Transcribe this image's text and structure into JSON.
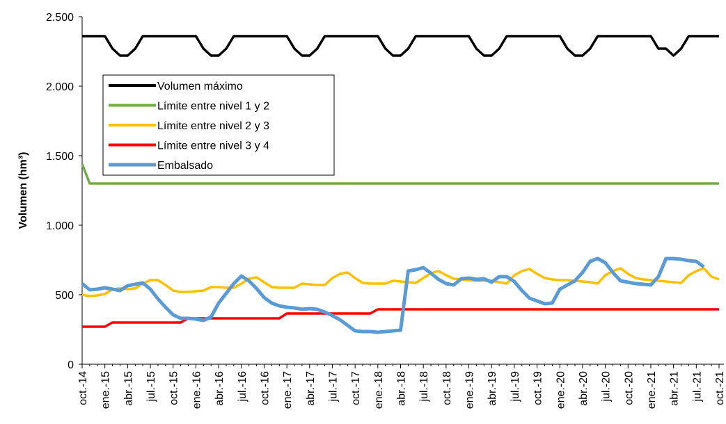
{
  "chart_data": {
    "type": "line",
    "y_label": "Volumen (hm³)",
    "categories": [
      "oct.-14",
      null,
      null,
      "ene.-15",
      null,
      null,
      "abr.-15",
      null,
      null,
      "jul.-15",
      null,
      null,
      "oct.-15",
      null,
      null,
      "ene.-16",
      null,
      null,
      "abr.-16",
      null,
      null,
      "jul.-16",
      null,
      null,
      "oct.-16",
      null,
      null,
      "ene.-17",
      null,
      null,
      "abr.-17",
      null,
      null,
      "jul.-17",
      null,
      null,
      "oct.-17",
      null,
      null,
      "ene.-18",
      null,
      null,
      "abr.-18",
      null,
      null,
      "jul.-18",
      null,
      null,
      "oct.-18",
      null,
      null,
      "ene.-19",
      null,
      null,
      "abr.-19",
      null,
      null,
      "jul.-19",
      null,
      null,
      "oct.-19",
      null,
      null,
      "ene.-20",
      null,
      null,
      "abr.-20",
      null,
      null,
      "jul.-20",
      null,
      null,
      "oct.-20",
      null,
      null,
      "ene.-21",
      null,
      null,
      "abr.-21",
      null,
      null,
      "jul.-21",
      null,
      null,
      "oct.-21"
    ],
    "ylim": [
      0,
      2500
    ],
    "yticks": [
      0,
      500,
      {
        "value": 1000,
        "label": "1.000"
      },
      {
        "value": 1500,
        "label": "1.500"
      },
      {
        "value": 2000,
        "label": "2.000"
      },
      {
        "value": 2500,
        "label": "2.500"
      }
    ],
    "legend": "upper left",
    "series": [
      {
        "name": "Volumen máximo",
        "color": "#000000",
        "values": [
          2360,
          2360,
          2360,
          2360,
          2270,
          2220,
          2220,
          2270,
          2360,
          2360,
          2360,
          2360,
          2360,
          2360,
          2360,
          2360,
          2270,
          2220,
          2220,
          2270,
          2360,
          2360,
          2360,
          2360,
          2360,
          2360,
          2360,
          2360,
          2270,
          2220,
          2220,
          2270,
          2360,
          2360,
          2360,
          2360,
          2360,
          2360,
          2360,
          2360,
          2270,
          2220,
          2220,
          2270,
          2360,
          2360,
          2360,
          2360,
          2360,
          2360,
          2360,
          2360,
          2270,
          2220,
          2220,
          2270,
          2360,
          2360,
          2360,
          2360,
          2360,
          2360,
          2360,
          2360,
          2270,
          2220,
          2220,
          2270,
          2360,
          2360,
          2360,
          2360,
          2360,
          2360,
          2360,
          2360,
          2270,
          2270,
          2220,
          2270,
          2360,
          2360,
          2360,
          2360,
          2360
        ]
      },
      {
        "name": "Límite entre nivel 1 y 2",
        "color": "#70ad47",
        "values": [
          1440,
          1300,
          1300,
          1300,
          1300,
          1300,
          1300,
          1300,
          1300,
          1300,
          1300,
          1300,
          1300,
          1300,
          1300,
          1300,
          1300,
          1300,
          1300,
          1300,
          1300,
          1300,
          1300,
          1300,
          1300,
          1300,
          1300,
          1300,
          1300,
          1300,
          1300,
          1300,
          1300,
          1300,
          1300,
          1300,
          1300,
          1300,
          1300,
          1300,
          1300,
          1300,
          1300,
          1300,
          1300,
          1300,
          1300,
          1300,
          1300,
          1300,
          1300,
          1300,
          1300,
          1300,
          1300,
          1300,
          1300,
          1300,
          1300,
          1300,
          1300,
          1300,
          1300,
          1300,
          1300,
          1300,
          1300,
          1300,
          1300,
          1300,
          1300,
          1300,
          1300,
          1300,
          1300,
          1300,
          1300,
          1300,
          1300,
          1300,
          1300,
          1300,
          1300,
          1300,
          1300
        ]
      },
      {
        "name": "Límite entre nivel 2 y 3",
        "color": "#ffc000",
        "values": [
          500,
          490,
          495,
          505,
          540,
          545,
          540,
          545,
          580,
          605,
          605,
          570,
          530,
          520,
          520,
          525,
          530,
          555,
          555,
          550,
          550,
          580,
          615,
          625,
          590,
          555,
          550,
          550,
          550,
          580,
          575,
          570,
          570,
          620,
          650,
          660,
          620,
          585,
          580,
          580,
          580,
          600,
          595,
          590,
          585,
          620,
          655,
          670,
          640,
          615,
          610,
          605,
          600,
          600,
          600,
          590,
          580,
          640,
          670,
          685,
          650,
          620,
          610,
          605,
          605,
          600,
          595,
          590,
          580,
          640,
          670,
          690,
          650,
          620,
          610,
          605,
          600,
          595,
          590,
          585,
          640,
          670,
          690,
          630,
          610
        ]
      },
      {
        "name": "Límite entre nivel 3 y 4",
        "color": "#ff0000",
        "values": [
          270,
          270,
          270,
          270,
          300,
          300,
          300,
          300,
          300,
          300,
          300,
          300,
          300,
          300,
          330,
          330,
          330,
          330,
          330,
          330,
          330,
          330,
          330,
          330,
          330,
          330,
          330,
          365,
          365,
          365,
          365,
          365,
          365,
          365,
          365,
          365,
          365,
          365,
          365,
          395,
          395,
          395,
          395,
          395,
          395,
          395,
          395,
          395,
          395,
          395,
          395,
          395,
          395,
          395,
          395,
          395,
          395,
          395,
          395,
          395,
          395,
          395,
          395,
          395,
          395,
          395,
          395,
          395,
          395,
          395,
          395,
          395,
          395,
          395,
          395,
          395,
          395,
          395,
          395,
          395,
          395,
          395,
          395,
          395,
          395
        ]
      },
      {
        "name": "Embalsado",
        "color": "#5b9bd5",
        "values": [
          580,
          535,
          540,
          550,
          540,
          530,
          565,
          575,
          585,
          540,
          470,
          410,
          355,
          330,
          330,
          325,
          315,
          340,
          440,
          510,
          580,
          635,
          600,
          545,
          480,
          440,
          420,
          410,
          405,
          395,
          400,
          395,
          375,
          350,
          320,
          280,
          240,
          235,
          235,
          230,
          235,
          240,
          245,
          670,
          680,
          695,
          655,
          610,
          580,
          570,
          615,
          620,
          610,
          615,
          590,
          630,
          630,
          595,
          530,
          475,
          455,
          435,
          440,
          540,
          570,
          600,
          660,
          740,
          760,
          730,
          660,
          600,
          590,
          580,
          575,
          570,
          630,
          760,
          760,
          755,
          745,
          740,
          700,
          null,
          null
        ]
      }
    ]
  }
}
